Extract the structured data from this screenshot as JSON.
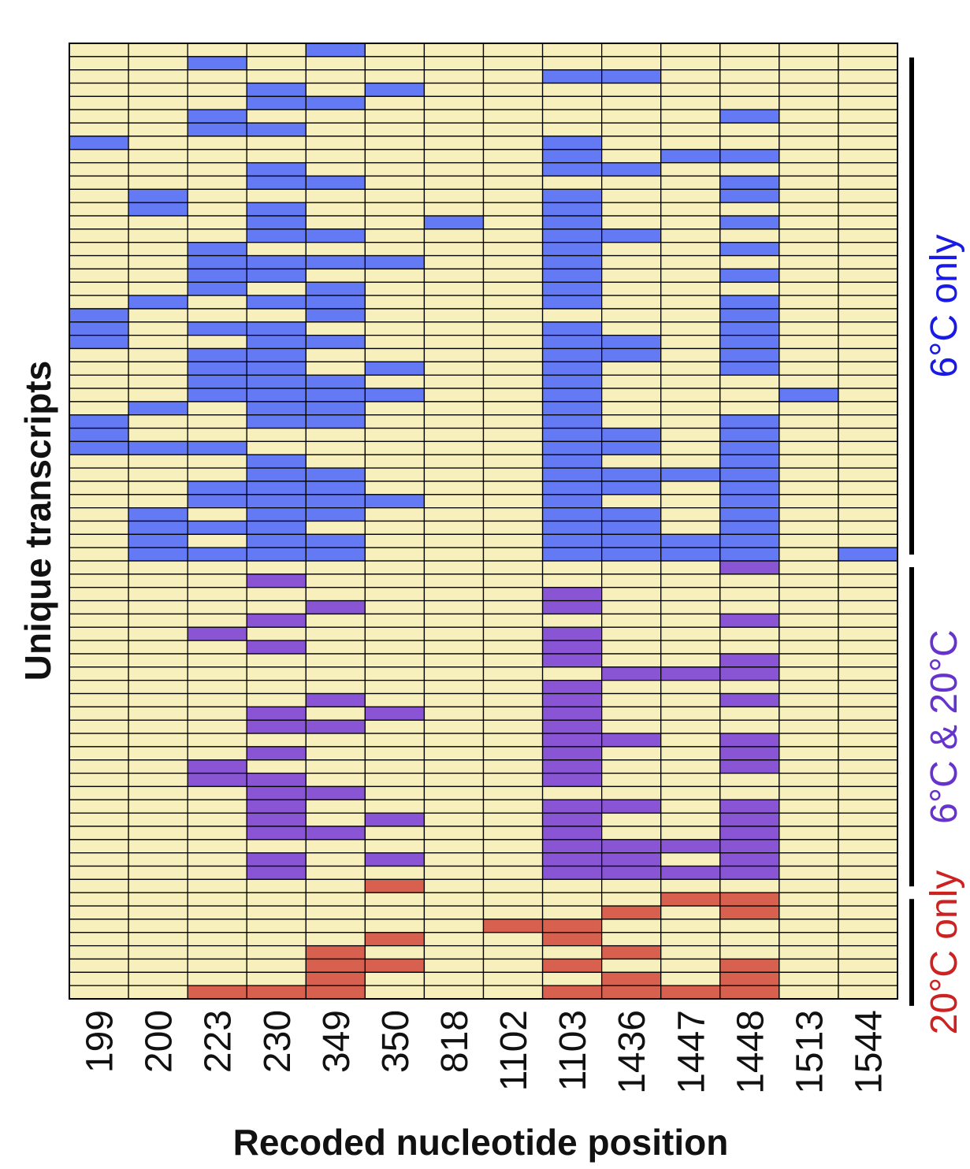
{
  "chart_data": {
    "type": "heatmap",
    "xlabel": "Recoded nucleotide position",
    "ylabel": "Unique transcripts",
    "columns": [
      "199",
      "200",
      "223",
      "230",
      "349",
      "350",
      "818",
      "1102",
      "1103",
      "1436",
      "1447",
      "1448",
      "1513",
      "1544"
    ],
    "legend_groups": [
      {
        "name": "6°C only",
        "color": "#1a1ae6",
        "row_range": [
          0,
          38
        ]
      },
      {
        "name": "6°C & 20°C",
        "color": "#6633cc",
        "row_range": [
          39,
          63
        ]
      },
      {
        "name": "20°C only",
        "color": "#cc2222",
        "row_range": [
          64,
          72
        ]
      }
    ],
    "colors": {
      "background": "#f8f0bc",
      "6C_only": "#6479f4",
      "6C_and_20C": "#8a55d4",
      "20C_only": "#d8604f",
      "grid": "#000000"
    },
    "encoding": "each row lists the recoded nucleotide position indices (into columns) that are recoded in that transcript",
    "rows": [
      {
        "group": "6C_only",
        "recoded": [
          4
        ]
      },
      {
        "group": "6C_only",
        "recoded": [
          2
        ]
      },
      {
        "group": "6C_only",
        "recoded": [
          8,
          9
        ]
      },
      {
        "group": "6C_only",
        "recoded": [
          3,
          5
        ]
      },
      {
        "group": "6C_only",
        "recoded": [
          3,
          4
        ]
      },
      {
        "group": "6C_only",
        "recoded": [
          2,
          11
        ]
      },
      {
        "group": "6C_only",
        "recoded": [
          2,
          3
        ]
      },
      {
        "group": "6C_only",
        "recoded": [
          0,
          8
        ]
      },
      {
        "group": "6C_only",
        "recoded": [
          8,
          10,
          11
        ]
      },
      {
        "group": "6C_only",
        "recoded": [
          3,
          8,
          9
        ]
      },
      {
        "group": "6C_only",
        "recoded": [
          3,
          4,
          11
        ]
      },
      {
        "group": "6C_only",
        "recoded": [
          1,
          8,
          11
        ]
      },
      {
        "group": "6C_only",
        "recoded": [
          1,
          3,
          8
        ]
      },
      {
        "group": "6C_only",
        "recoded": [
          3,
          6,
          8,
          11
        ]
      },
      {
        "group": "6C_only",
        "recoded": [
          3,
          4,
          8,
          9
        ]
      },
      {
        "group": "6C_only",
        "recoded": [
          2,
          8,
          11
        ]
      },
      {
        "group": "6C_only",
        "recoded": [
          2,
          3,
          4,
          5,
          8
        ]
      },
      {
        "group": "6C_only",
        "recoded": [
          2,
          3,
          8,
          11
        ]
      },
      {
        "group": "6C_only",
        "recoded": [
          2,
          4,
          8
        ]
      },
      {
        "group": "6C_only",
        "recoded": [
          1,
          3,
          4,
          8,
          11
        ]
      },
      {
        "group": "6C_only",
        "recoded": [
          0,
          4,
          11
        ]
      },
      {
        "group": "6C_only",
        "recoded": [
          0,
          2,
          3,
          8,
          11
        ]
      },
      {
        "group": "6C_only",
        "recoded": [
          0,
          3,
          4,
          8,
          9,
          11
        ]
      },
      {
        "group": "6C_only",
        "recoded": [
          2,
          3,
          8,
          9,
          11
        ]
      },
      {
        "group": "6C_only",
        "recoded": [
          2,
          3,
          5,
          8,
          11
        ]
      },
      {
        "group": "6C_only",
        "recoded": [
          2,
          3,
          4,
          8
        ]
      },
      {
        "group": "6C_only",
        "recoded": [
          2,
          3,
          4,
          5,
          8,
          12
        ]
      },
      {
        "group": "6C_only",
        "recoded": [
          1,
          3,
          4,
          8
        ]
      },
      {
        "group": "6C_only",
        "recoded": [
          0,
          3,
          4,
          8,
          11
        ]
      },
      {
        "group": "6C_only",
        "recoded": [
          0,
          8,
          9,
          11
        ]
      },
      {
        "group": "6C_only",
        "recoded": [
          0,
          1,
          2,
          8,
          9,
          11
        ]
      },
      {
        "group": "6C_only",
        "recoded": [
          3,
          8,
          11
        ]
      },
      {
        "group": "6C_only",
        "recoded": [
          3,
          4,
          8,
          9,
          10,
          11
        ]
      },
      {
        "group": "6C_only",
        "recoded": [
          2,
          3,
          4,
          8,
          9,
          11
        ]
      },
      {
        "group": "6C_only",
        "recoded": [
          2,
          3,
          4,
          5,
          8,
          11
        ]
      },
      {
        "group": "6C_only",
        "recoded": [
          1,
          3,
          4,
          8,
          9,
          11
        ]
      },
      {
        "group": "6C_only",
        "recoded": [
          1,
          2,
          3,
          8,
          9,
          11
        ]
      },
      {
        "group": "6C_only",
        "recoded": [
          1,
          3,
          4,
          8,
          9,
          10,
          11
        ]
      },
      {
        "group": "6C_only",
        "recoded": [
          1,
          2,
          3,
          4,
          8,
          9,
          10,
          11,
          13
        ]
      },
      {
        "group": "6C_and_20C",
        "recoded": [
          11
        ]
      },
      {
        "group": "6C_and_20C",
        "recoded": [
          3
        ]
      },
      {
        "group": "6C_and_20C",
        "recoded": [
          8
        ]
      },
      {
        "group": "6C_and_20C",
        "recoded": [
          4,
          8
        ]
      },
      {
        "group": "6C_and_20C",
        "recoded": [
          3,
          11
        ]
      },
      {
        "group": "6C_and_20C",
        "recoded": [
          2,
          8
        ]
      },
      {
        "group": "6C_and_20C",
        "recoded": [
          3,
          8
        ]
      },
      {
        "group": "6C_and_20C",
        "recoded": [
          8,
          11
        ]
      },
      {
        "group": "6C_and_20C",
        "recoded": [
          9,
          10,
          11
        ]
      },
      {
        "group": "6C_and_20C",
        "recoded": [
          8
        ]
      },
      {
        "group": "6C_and_20C",
        "recoded": [
          4,
          8,
          11
        ]
      },
      {
        "group": "6C_and_20C",
        "recoded": [
          3,
          5,
          8
        ]
      },
      {
        "group": "6C_and_20C",
        "recoded": [
          3,
          4,
          8
        ]
      },
      {
        "group": "6C_and_20C",
        "recoded": [
          8,
          9,
          11
        ]
      },
      {
        "group": "6C_and_20C",
        "recoded": [
          3,
          8,
          11
        ]
      },
      {
        "group": "6C_and_20C",
        "recoded": [
          2,
          8,
          11
        ]
      },
      {
        "group": "6C_and_20C",
        "recoded": [
          2,
          3,
          8
        ]
      },
      {
        "group": "6C_and_20C",
        "recoded": [
          3,
          4
        ]
      },
      {
        "group": "6C_and_20C",
        "recoded": [
          3,
          8,
          9,
          11
        ]
      },
      {
        "group": "6C_and_20C",
        "recoded": [
          3,
          5,
          8,
          11
        ]
      },
      {
        "group": "6C_and_20C",
        "recoded": [
          3,
          4,
          8,
          11
        ]
      },
      {
        "group": "6C_and_20C",
        "recoded": [
          8,
          9,
          10,
          11
        ]
      },
      {
        "group": "6C_and_20C",
        "recoded": [
          3,
          5,
          8,
          9,
          11
        ]
      },
      {
        "group": "6C_and_20C",
        "recoded": [
          3,
          8,
          9,
          10,
          11
        ]
      },
      {
        "group": "20C_only",
        "recoded": [
          5
        ]
      },
      {
        "group": "20C_only",
        "recoded": [
          10,
          11
        ]
      },
      {
        "group": "20C_only",
        "recoded": [
          9,
          11
        ]
      },
      {
        "group": "20C_only",
        "recoded": [
          7,
          8
        ]
      },
      {
        "group": "20C_only",
        "recoded": [
          5,
          8
        ]
      },
      {
        "group": "20C_only",
        "recoded": [
          4,
          9
        ]
      },
      {
        "group": "20C_only",
        "recoded": [
          4,
          5,
          8,
          11
        ]
      },
      {
        "group": "20C_only",
        "recoded": [
          4,
          9,
          11
        ]
      },
      {
        "group": "20C_only",
        "recoded": [
          2,
          3,
          4,
          8,
          9,
          10,
          11
        ]
      }
    ]
  }
}
